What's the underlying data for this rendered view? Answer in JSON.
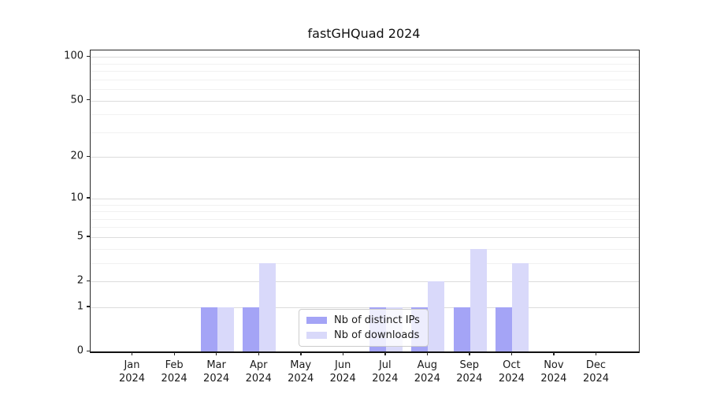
{
  "title": "fastGHQuad 2024",
  "chart_data": {
    "type": "bar",
    "title": "fastGHQuad 2024",
    "categories": [
      "Jan 2024",
      "Feb 2024",
      "Mar 2024",
      "Apr 2024",
      "May 2024",
      "Jun 2024",
      "Jul 2024",
      "Aug 2024",
      "Sep 2024",
      "Oct 2024",
      "Nov 2024",
      "Dec 2024"
    ],
    "series": [
      {
        "name": "Nb of distinct IPs",
        "color": "#a4a4f6",
        "values": [
          0,
          0,
          1,
          1,
          0,
          0,
          1,
          1,
          1,
          1,
          0,
          0
        ]
      },
      {
        "name": "Nb of downloads",
        "color": "#d9d9fa",
        "values": [
          0,
          0,
          1,
          3,
          0,
          0,
          1,
          2,
          4,
          3,
          0,
          0
        ]
      }
    ],
    "xlabel": "",
    "ylabel": "",
    "y_axis": {
      "scale": "log1p",
      "tick_values": [
        0,
        1,
        2,
        5,
        10,
        20,
        50,
        100
      ],
      "tick_labels": [
        "0",
        "1",
        "2",
        "5",
        "10",
        "20",
        "50",
        "100"
      ],
      "minor_gridline_values": [
        3,
        4,
        6,
        7,
        8,
        9,
        30,
        40,
        60,
        70,
        80,
        90
      ],
      "ylim": [
        0,
        110.7
      ]
    },
    "grid": true,
    "legend_position": "lower center, inside plot",
    "style": {
      "grid_major_color": "#dcdcdc",
      "grid_minor_color": "#f1f1f1",
      "axis_color": "#262626",
      "background_color": "#ffffff"
    }
  }
}
